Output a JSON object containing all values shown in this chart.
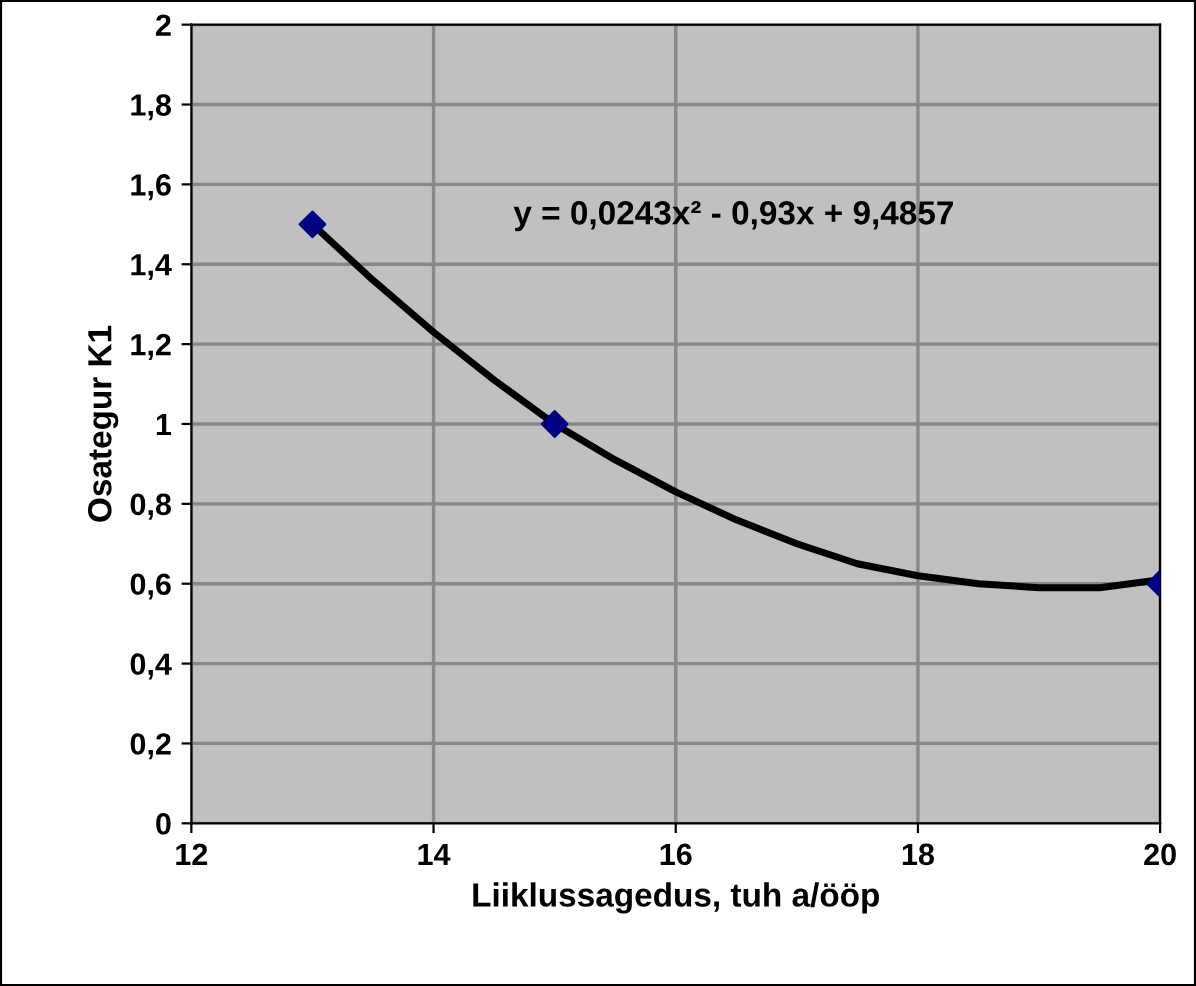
{
  "chart_data": {
    "type": "scatter",
    "xlabel": "Liiklussagedus, tuh a/ööp",
    "ylabel": "Osategur K1",
    "series": [
      {
        "color": "#000080",
        "marker": "diamond",
        "x": [
          13,
          15,
          20
        ],
        "values": [
          1.5,
          1.0,
          0.6
        ]
      },
      {
        "type": "line",
        "color": "#000000",
        "marker": "none",
        "line_style": "solid",
        "x": [
          13,
          13.5,
          14,
          14.5,
          15,
          15.5,
          16,
          16.5,
          17,
          17.5,
          18,
          18.5,
          19,
          19.5,
          20
        ],
        "values": [
          1.5,
          1.36,
          1.23,
          1.11,
          1.0,
          0.91,
          0.83,
          0.76,
          0.7,
          0.65,
          0.62,
          0.6,
          0.59,
          0.59,
          0.61
        ]
      }
    ],
    "annotations": [
      "y = 0,0243x² - 0,93x + 9,4857"
    ],
    "xlim": [
      12,
      20
    ],
    "xticks": [
      12,
      14,
      16,
      18,
      20
    ],
    "ylim": [
      0,
      2
    ],
    "yticks": [
      0,
      {
        "value": 0.2,
        "label": "0,2"
      },
      {
        "value": 0.4,
        "label": "0,4"
      },
      {
        "value": 0.6,
        "label": "0,6"
      },
      {
        "value": 0.8,
        "label": "0,8"
      },
      1,
      {
        "value": 1.2,
        "label": "1,2"
      },
      {
        "value": 1.4,
        "label": "1,4"
      },
      {
        "value": 1.6,
        "label": "1,6"
      },
      {
        "value": 1.8,
        "label": "1,8"
      },
      2
    ],
    "grid": true
  }
}
